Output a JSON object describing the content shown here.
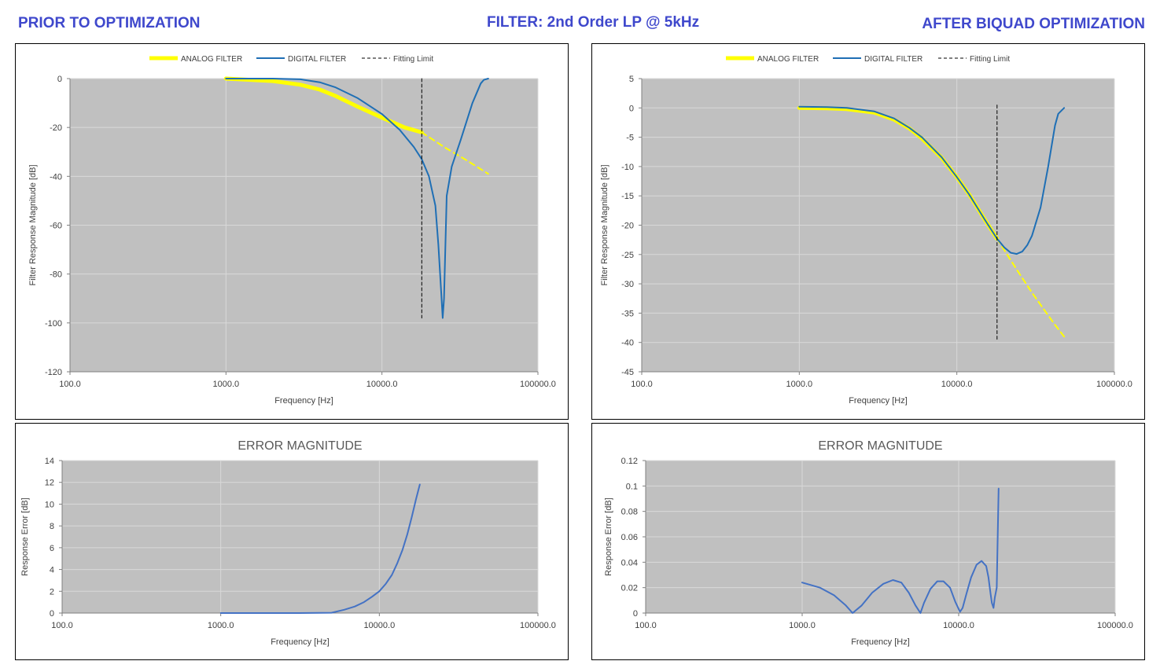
{
  "headers": {
    "left": "PRIOR TO OPTIMIZATION",
    "center": "FILTER: 2nd Order LP @ 5kHz",
    "right": "AFTER BIQUAD OPTIMIZATION"
  },
  "colors": {
    "header": "#3f48cc",
    "plot_bg": "#c0c0c0",
    "grid": "#d9d9d9",
    "analog": "#ffff00",
    "digital": "#1f6fb5",
    "error": "#4472c4",
    "fitting_limit": "#000000"
  },
  "chart_data": [
    {
      "id": "before-response",
      "type": "line",
      "title": "",
      "xlabel": "Frequency [Hz]",
      "ylabel": "Filter Response Magnitude [dB]",
      "xscale": "log",
      "xlim": [
        100,
        100000
      ],
      "ylim": [
        -120,
        0
      ],
      "x_ticks": [
        100,
        1000,
        10000,
        100000
      ],
      "x_tick_labels": [
        "100.0",
        "1000.0",
        "10000.0",
        "100000.0"
      ],
      "y_ticks": [
        0,
        -20,
        -40,
        -60,
        -80,
        -100,
        -120
      ],
      "y_tick_labels": [
        "0",
        "-20",
        "-40",
        "-60",
        "-80",
        "-100",
        "-120"
      ],
      "grid": true,
      "legend": [
        "ANALOG FILTER",
        "DIGITAL FILTER",
        "Fitting Limit"
      ],
      "legend_position": "top",
      "series": [
        {
          "name": "ANALOG FILTER",
          "style": "analog",
          "x": [
            1000,
            2000,
            3000,
            4000,
            5000,
            7000,
            10000,
            14000,
            18000
          ],
          "y": [
            0,
            -1,
            -2.5,
            -4.5,
            -7,
            -11.5,
            -16,
            -20,
            -22
          ]
        },
        {
          "name": "ANALOG FILTER",
          "style": "analog-dashed",
          "x": [
            18000,
            25000,
            35000,
            48000
          ],
          "y": [
            -22,
            -28,
            -33.5,
            -39
          ]
        },
        {
          "name": "DIGITAL FILTER",
          "style": "digital",
          "x": [
            1000,
            2000,
            3000,
            4000,
            5000,
            7000,
            10000,
            13000,
            16000,
            18000,
            20000,
            22000,
            23000,
            24000,
            24500,
            25000,
            26000,
            28000,
            32000,
            38000,
            43000,
            45000,
            48000
          ],
          "y": [
            0,
            0,
            -0.3,
            -1.5,
            -3.5,
            -8,
            -14.5,
            -21,
            -28,
            -33,
            -40,
            -52,
            -68,
            -88,
            -98,
            -90,
            -48,
            -36,
            -25,
            -10,
            -2,
            -0.5,
            0
          ]
        },
        {
          "name": "Fitting Limit",
          "style": "limit",
          "x": [
            18000,
            18000
          ],
          "y": [
            0,
            -98
          ]
        }
      ]
    },
    {
      "id": "after-response",
      "type": "line",
      "title": "",
      "xlabel": "Frequency [Hz]",
      "ylabel": "Filter Response Magnitude [dB]",
      "xscale": "log",
      "xlim": [
        100,
        100000
      ],
      "ylim": [
        -45,
        5
      ],
      "x_ticks": [
        100,
        1000,
        10000,
        100000
      ],
      "x_tick_labels": [
        "100.0",
        "1000.0",
        "10000.0",
        "100000.0"
      ],
      "y_ticks": [
        5,
        0,
        -5,
        -10,
        -15,
        -20,
        -25,
        -30,
        -35,
        -40,
        -45
      ],
      "y_tick_labels": [
        "5",
        "0",
        "-5",
        "-10",
        "-15",
        "-20",
        "-25",
        "-30",
        "-35",
        "-40",
        "-45"
      ],
      "grid": true,
      "legend": [
        "ANALOG FILTER",
        "DIGITAL FILTER",
        "Fitting Limit"
      ],
      "legend_position": "top",
      "series": [
        {
          "name": "ANALOG FILTER",
          "style": "analog",
          "x": [
            1000,
            1500,
            2000,
            3000,
            4000,
            5000,
            6000,
            8000,
            10000,
            12000,
            15000,
            18000
          ],
          "y": [
            0,
            -0.05,
            -0.2,
            -0.8,
            -2,
            -3.5,
            -5.2,
            -8.5,
            -11.8,
            -14.8,
            -19,
            -22.3
          ]
        },
        {
          "name": "ANALOG FILTER",
          "style": "analog-dashed",
          "x": [
            18000,
            22000,
            26000,
            30000,
            36000,
            42000,
            48000
          ],
          "y": [
            -22.3,
            -26,
            -29,
            -31.5,
            -34.5,
            -37,
            -39
          ]
        },
        {
          "name": "DIGITAL FILTER",
          "style": "digital",
          "x": [
            1000,
            1500,
            2000,
            3000,
            4000,
            5000,
            6000,
            8000,
            10000,
            12000,
            15000,
            18000,
            20000,
            22000,
            24000,
            26000,
            28000,
            30000,
            34000,
            38000,
            42000,
            44000,
            48000
          ],
          "y": [
            0.2,
            0.15,
            0,
            -0.6,
            -1.8,
            -3.4,
            -5,
            -8.4,
            -11.8,
            -14.8,
            -19,
            -22.3,
            -23.8,
            -24.7,
            -24.9,
            -24.5,
            -23.4,
            -21.8,
            -17,
            -10,
            -3,
            -1,
            0
          ]
        },
        {
          "name": "Fitting Limit",
          "style": "limit",
          "x": [
            18000,
            18000
          ],
          "y": [
            0.5,
            -39.5
          ]
        }
      ]
    },
    {
      "id": "before-error",
      "type": "line",
      "title": "ERROR MAGNITUDE",
      "xlabel": "Frequency [Hz]",
      "ylabel": "Response Error [dB]",
      "xscale": "log",
      "xlim": [
        100,
        100000
      ],
      "ylim": [
        0,
        14
      ],
      "x_ticks": [
        100,
        1000,
        10000,
        100000
      ],
      "x_tick_labels": [
        "100.0",
        "1000.0",
        "10000.0",
        "100000.0"
      ],
      "y_ticks": [
        0,
        2,
        4,
        6,
        8,
        10,
        12,
        14
      ],
      "y_tick_labels": [
        "0",
        "2",
        "4",
        "6",
        "8",
        "10",
        "12",
        "14"
      ],
      "grid": true,
      "series": [
        {
          "x": [
            1000,
            3000,
            5000,
            6000,
            7000,
            8000,
            9000,
            10000,
            11000,
            12000,
            13000,
            14000,
            15000,
            16000,
            17000,
            18000
          ],
          "y": [
            0,
            0,
            0.03,
            0.3,
            0.6,
            1.0,
            1.5,
            2.0,
            2.7,
            3.5,
            4.6,
            5.8,
            7.2,
            8.8,
            10.4,
            11.8
          ]
        }
      ]
    },
    {
      "id": "after-error",
      "type": "line",
      "title": "ERROR MAGNITUDE",
      "xlabel": "Frequency [Hz]",
      "ylabel": "Response Error [dB]",
      "xscale": "log",
      "xlim": [
        100,
        100000
      ],
      "ylim": [
        0,
        0.12
      ],
      "x_ticks": [
        100,
        1000,
        10000,
        100000
      ],
      "x_tick_labels": [
        "100.0",
        "1000.0",
        "10000.0",
        "100000.0"
      ],
      "y_ticks": [
        0,
        0.02,
        0.04,
        0.06,
        0.08,
        0.1,
        0.12
      ],
      "y_tick_labels": [
        "0",
        "0.02",
        "0.04",
        "0.06",
        "0.08",
        "0.1",
        "0.12"
      ],
      "grid": true,
      "series": [
        {
          "x": [
            1000,
            1300,
            1600,
            1900,
            2100,
            2400,
            2800,
            3300,
            3800,
            4300,
            4800,
            5300,
            5700,
            6000,
            6600,
            7300,
            8000,
            8800,
            9500,
            10200,
            10600,
            11200,
            12000,
            13000,
            14000,
            15000,
            15500,
            16000,
            16300,
            16700,
            17000,
            17500,
            18000
          ],
          "y": [
            0.024,
            0.02,
            0.014,
            0.006,
            0.0,
            0.006,
            0.016,
            0.023,
            0.026,
            0.024,
            0.016,
            0.006,
            0.0,
            0.008,
            0.019,
            0.025,
            0.025,
            0.02,
            0.009,
            0.001,
            0.004,
            0.015,
            0.028,
            0.038,
            0.041,
            0.037,
            0.028,
            0.015,
            0.008,
            0.004,
            0.012,
            0.02,
            0.098
          ]
        }
      ]
    }
  ]
}
